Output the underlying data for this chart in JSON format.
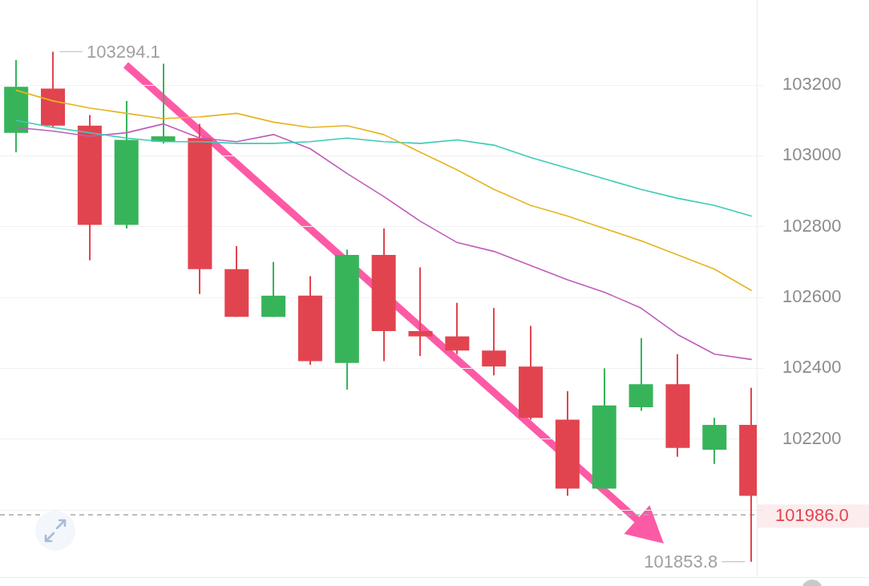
{
  "chart_data": {
    "type": "candlestick",
    "categories": [
      null,
      null,
      null,
      null,
      null,
      null,
      null,
      null,
      null,
      null,
      null,
      null,
      null,
      null,
      null,
      null,
      null,
      null,
      null,
      null,
      null
    ],
    "ohlc": [
      [
        103065,
        103270,
        103010,
        103195
      ],
      [
        103190,
        103294.1,
        103080,
        103085
      ],
      [
        103085,
        103115,
        102705,
        102805
      ],
      [
        102805,
        103155,
        102795,
        103045
      ],
      [
        103040,
        103260,
        103035,
        103055
      ],
      [
        103050,
        103090,
        102610,
        102680
      ],
      [
        102680,
        102745,
        102545,
        102545
      ],
      [
        102545,
        102700,
        102545,
        102605
      ],
      [
        102605,
        102660,
        102410,
        102420
      ],
      [
        102415,
        102735,
        102340,
        102720
      ],
      [
        102720,
        102795,
        102420,
        102505
      ],
      [
        102505,
        102685,
        102435,
        102490
      ],
      [
        102490,
        102585,
        102440,
        102450
      ],
      [
        102450,
        102570,
        102380,
        102405
      ],
      [
        102405,
        102520,
        102255,
        102260
      ],
      [
        102255,
        102335,
        102040,
        102060
      ],
      [
        102060,
        102400,
        102060,
        102295
      ],
      [
        102290,
        102485,
        102280,
        102355
      ],
      [
        102355,
        102440,
        102150,
        102175
      ],
      [
        102170,
        102260,
        102130,
        102240
      ],
      [
        102240,
        102345,
        101853.8,
        102040
      ]
    ],
    "colors": [
      "#37b45a",
      "#e2444f",
      "#e2444f",
      "#37b45a",
      "#37b45a",
      "#e2444f",
      "#e2444f",
      "#37b45a",
      "#e2444f",
      "#37b45a",
      "#e2444f",
      "#e2444f",
      "#e2444f",
      "#e2444f",
      "#e2444f",
      "#e2444f",
      "#37b45a",
      "#37b45a",
      "#e2444f",
      "#37b45a",
      "#e2444f"
    ],
    "series": [
      {
        "type": "line",
        "color": "#e6b422",
        "values": [
          103185,
          103155,
          103135,
          103120,
          103105,
          103110,
          103120,
          103095,
          103080,
          103085,
          103060,
          103010,
          102960,
          102905,
          102860,
          102830,
          102795,
          102760,
          102720,
          102680,
          102620
        ]
      },
      {
        "type": "line",
        "color": "#3ecbb5",
        "values": [
          103100,
          103080,
          103065,
          103050,
          103040,
          103040,
          103035,
          103035,
          103040,
          103050,
          103040,
          103035,
          103045,
          103030,
          102995,
          102965,
          102935,
          102905,
          102880,
          102860,
          102830
        ]
      },
      {
        "type": "line",
        "color": "#c05cbb",
        "values": [
          103080,
          103070,
          103055,
          103065,
          103090,
          103050,
          103040,
          103060,
          103020,
          102950,
          102885,
          102815,
          102755,
          102730,
          102690,
          102650,
          102615,
          102570,
          102495,
          102440,
          102425
        ]
      }
    ],
    "ylim": [
      101810,
      103440
    ],
    "yticks": [
      {
        "value": 102000,
        "label": null
      },
      102200,
      102400,
      102600,
      102800,
      103000,
      103200
    ],
    "grid": "y",
    "tick_labels": "y",
    "ref_lines": [
      {
        "axis": "y",
        "value": 101986.0,
        "label": "101986.0",
        "color": "#a8a8a8",
        "line_style": "dashed"
      }
    ],
    "annotations": [
      "103294.1",
      "101853.8"
    ]
  }
}
